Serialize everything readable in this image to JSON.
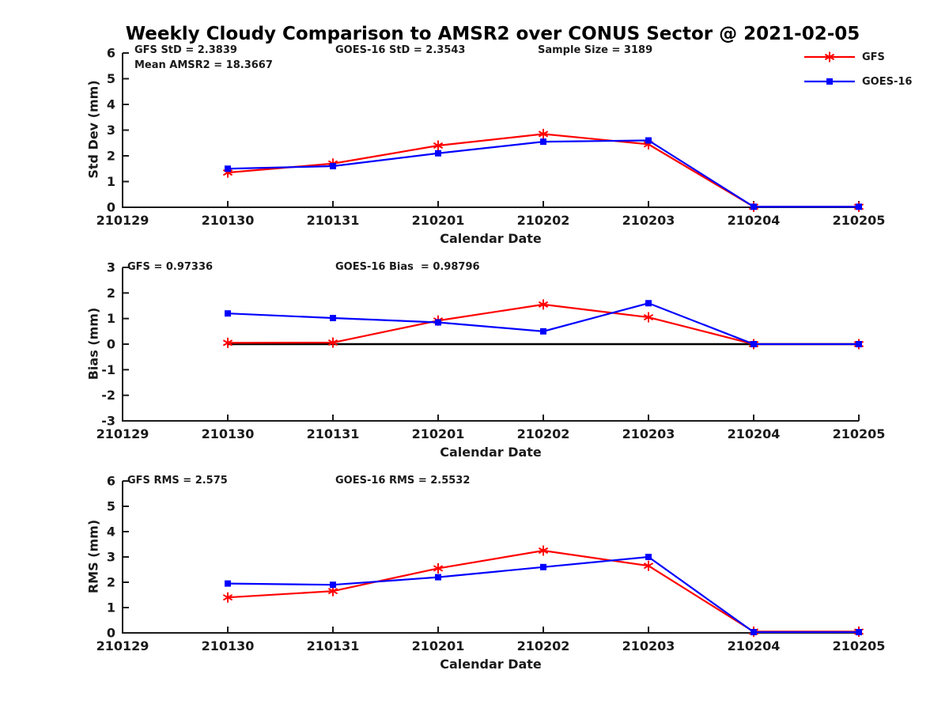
{
  "title": "Weekly Cloudy Comparison to AMSR2 over CONUS Sector @ 2021-02-05",
  "colors": {
    "gfs": "#ff0000",
    "goes16": "#0000ff",
    "axis": "#1a1a1a",
    "zero_line": "#000000"
  },
  "chart_data": [
    {
      "type": "line",
      "name": "std-dev",
      "ylabel": "Std Dev (mm)",
      "xlabel": "Calendar Date",
      "categories": [
        "210129",
        "210130",
        "210131",
        "210201",
        "210202",
        "210203",
        "210204",
        "210205"
      ],
      "ylim": [
        0,
        6
      ],
      "ytick_step": 1,
      "grid": false,
      "zero_line": false,
      "annotations": [
        "GFS StD = 2.3839",
        "Mean AMSR2 = 18.3667",
        "GOES-16 StD = 2.3543",
        "Sample Size = 3189"
      ],
      "legend_position": "top-right-outside",
      "series": [
        {
          "name": "GFS",
          "color": "#ff0000",
          "marker": "asterisk",
          "values": [
            null,
            1.35,
            1.7,
            2.4,
            2.85,
            2.45,
            0.02,
            0.02
          ]
        },
        {
          "name": "GOES-16",
          "color": "#0000ff",
          "marker": "square",
          "values": [
            null,
            1.5,
            1.6,
            2.1,
            2.55,
            2.6,
            0.02,
            0.02
          ]
        }
      ]
    },
    {
      "type": "line",
      "name": "bias",
      "ylabel": "Bias (mm)",
      "xlabel": "Calendar Date",
      "categories": [
        "210129",
        "210130",
        "210131",
        "210201",
        "210202",
        "210203",
        "210204",
        "210205"
      ],
      "ylim": [
        -3,
        3
      ],
      "ytick_step": 1,
      "grid": false,
      "zero_line": true,
      "annotations": [
        "GFS = 0.97336",
        "GOES-16 Bias  = 0.98796"
      ],
      "series": [
        {
          "name": "GFS",
          "color": "#ff0000",
          "marker": "asterisk",
          "values": [
            null,
            0.05,
            0.06,
            0.92,
            1.55,
            1.05,
            0.0,
            0.0
          ]
        },
        {
          "name": "GOES-16",
          "color": "#0000ff",
          "marker": "square",
          "values": [
            null,
            1.2,
            1.02,
            0.85,
            0.5,
            1.6,
            0.0,
            0.0
          ]
        }
      ]
    },
    {
      "type": "line",
      "name": "rms",
      "ylabel": "RMS (mm)",
      "xlabel": "Calendar Date",
      "categories": [
        "210129",
        "210130",
        "210131",
        "210201",
        "210202",
        "210203",
        "210204",
        "210205"
      ],
      "ylim": [
        0,
        6
      ],
      "ytick_step": 1,
      "grid": false,
      "zero_line": false,
      "annotations": [
        "GFS RMS = 2.575",
        "GOES-16 RMS = 2.5532"
      ],
      "series": [
        {
          "name": "GFS",
          "color": "#ff0000",
          "marker": "asterisk",
          "values": [
            null,
            1.4,
            1.65,
            2.55,
            3.25,
            2.65,
            0.05,
            0.05
          ]
        },
        {
          "name": "GOES-16",
          "color": "#0000ff",
          "marker": "square",
          "values": [
            null,
            1.95,
            1.9,
            2.2,
            2.6,
            3.0,
            0.03,
            0.03
          ]
        }
      ]
    }
  ]
}
